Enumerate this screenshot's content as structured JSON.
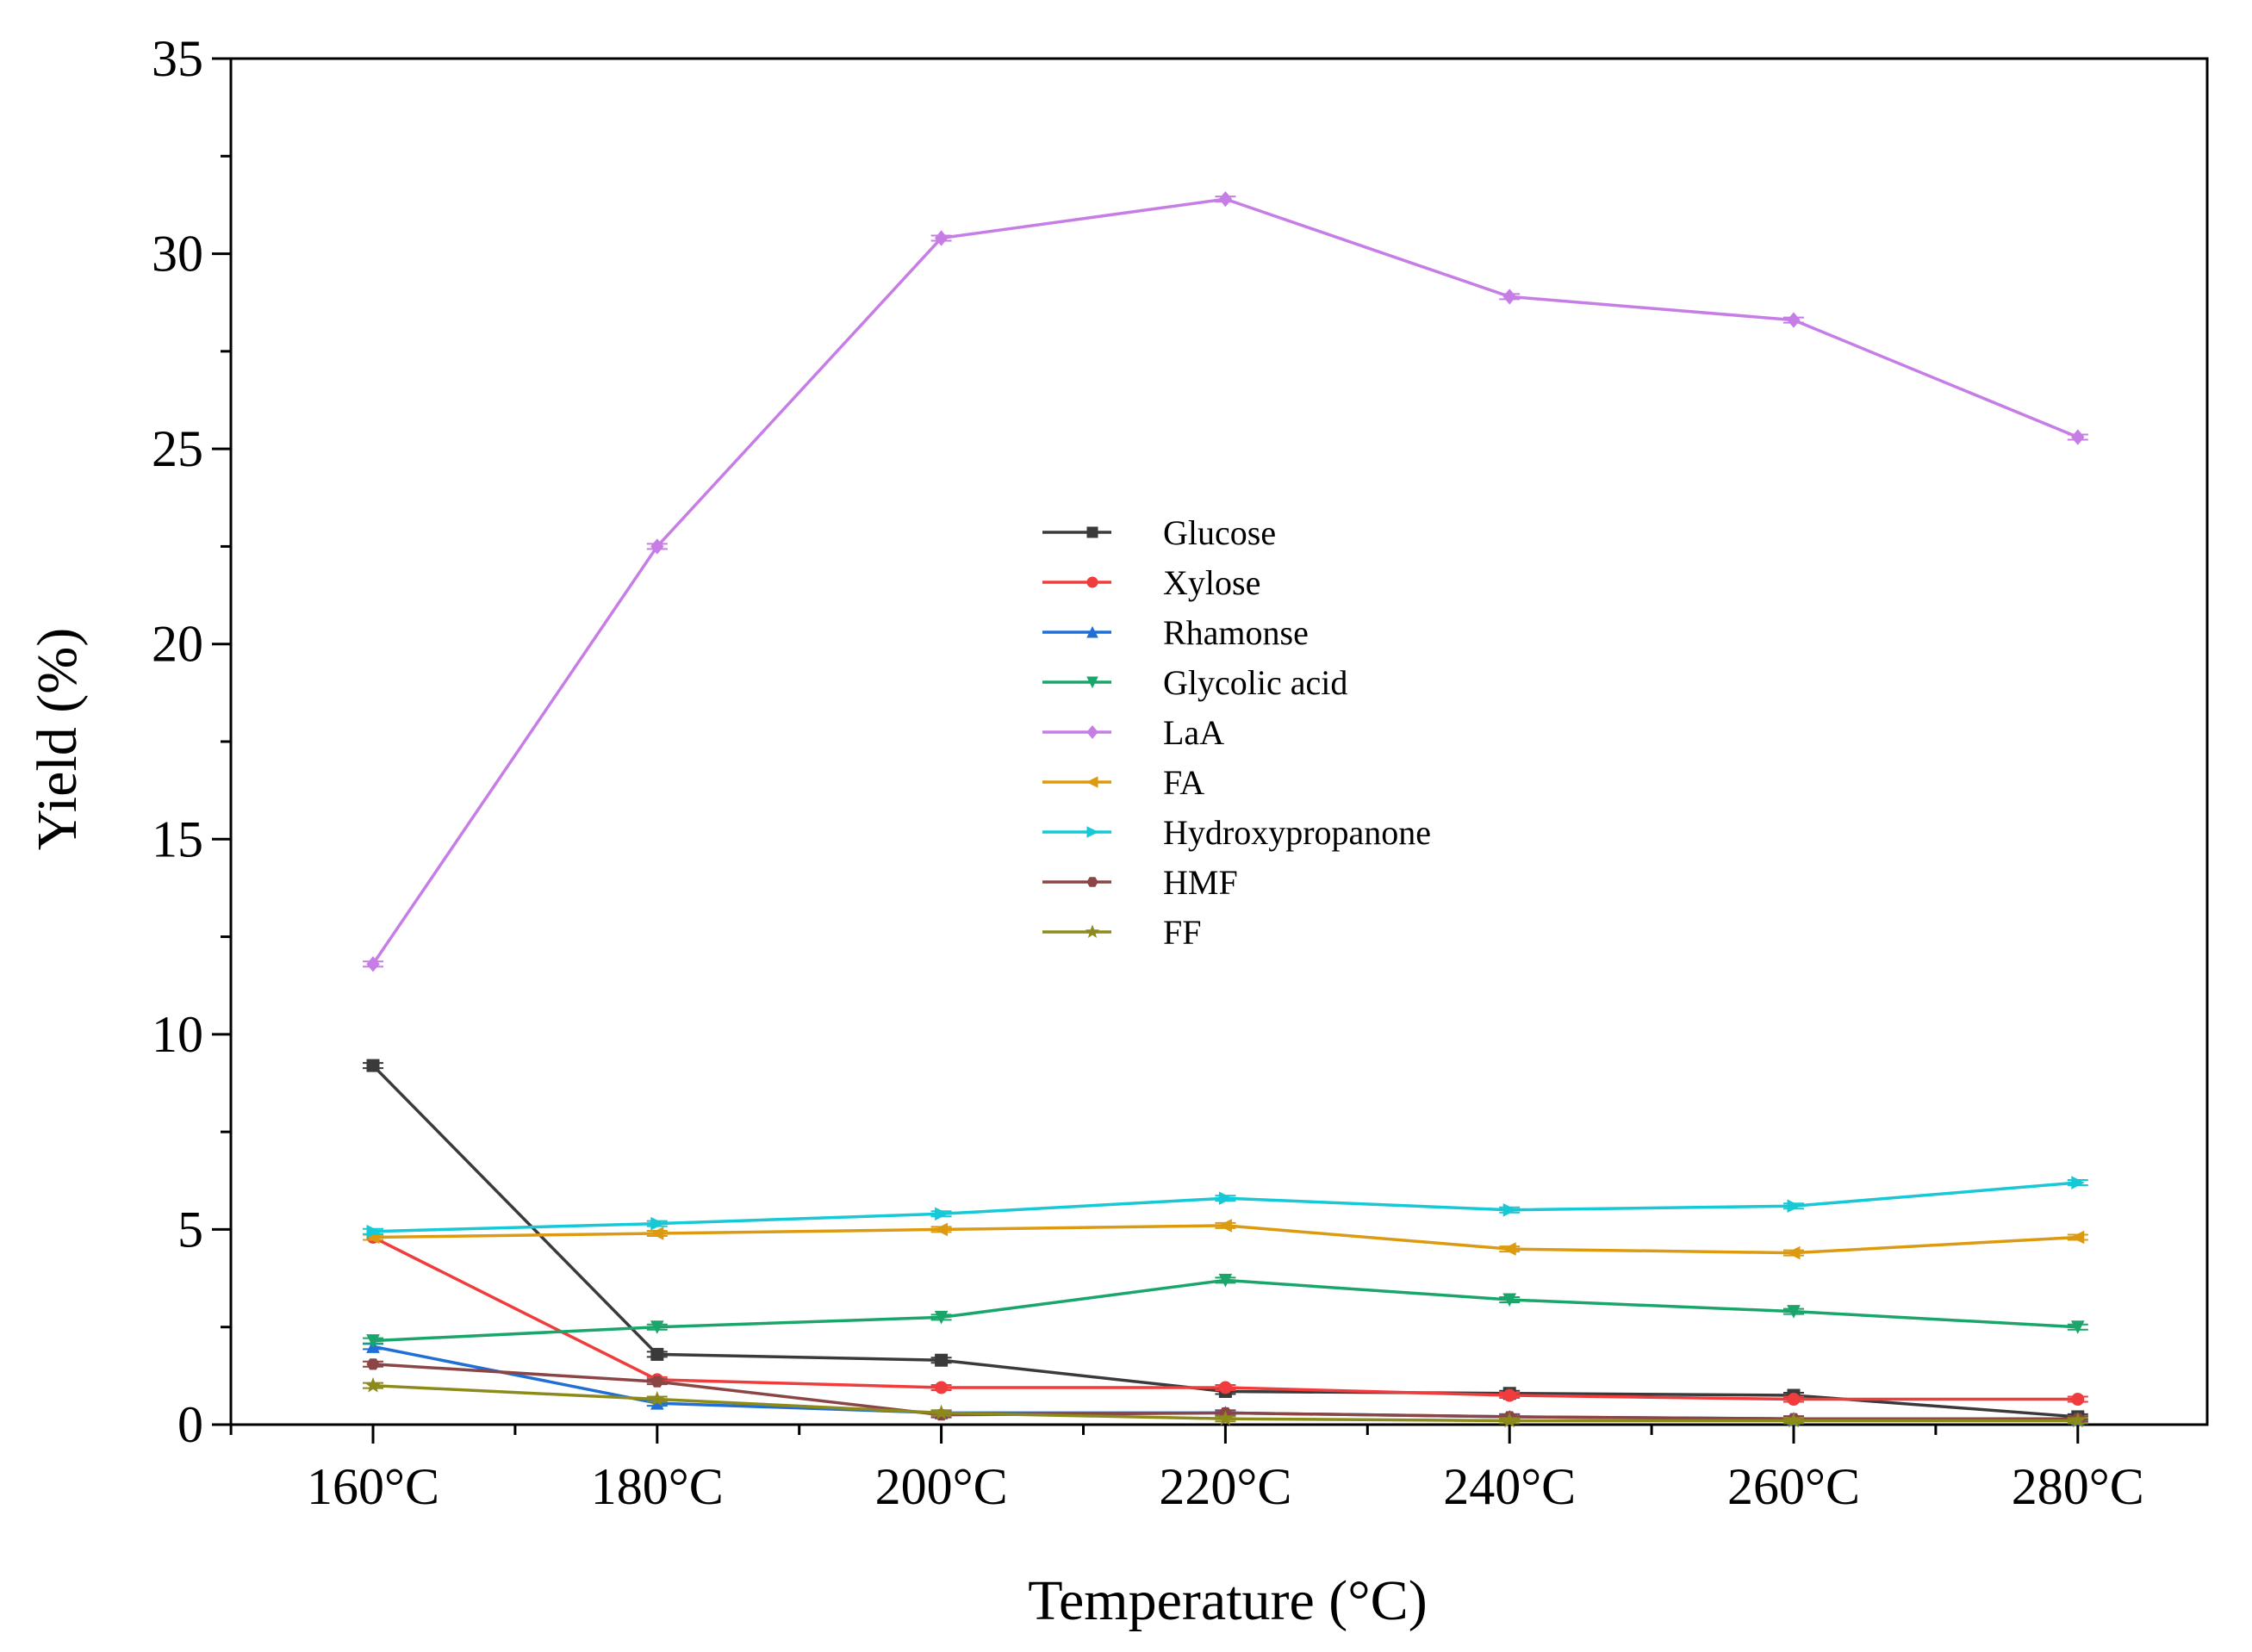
{
  "chart_data": {
    "type": "line",
    "title": "",
    "xlabel": "Temperature (°C)",
    "ylabel": "Yield (%)",
    "categories": [
      "160°C",
      "180°C",
      "200°C",
      "220°C",
      "240°C",
      "260°C",
      "280°C"
    ],
    "ylim": [
      0,
      35
    ],
    "yticks": [
      "0",
      "5",
      "10",
      "15",
      "20",
      "25",
      "30",
      "35"
    ],
    "grid": false,
    "legend_position": "center",
    "series": [
      {
        "name": "Glucose",
        "color": "#3a3a3a",
        "marker": "square",
        "values": [
          9.2,
          1.8,
          1.65,
          0.85,
          0.8,
          0.75,
          0.2
        ]
      },
      {
        "name": "Xylose",
        "color": "#f03c3c",
        "marker": "circle",
        "values": [
          4.8,
          1.15,
          0.95,
          0.95,
          0.75,
          0.65,
          0.65
        ]
      },
      {
        "name": "Rhamonse",
        "color": "#1f6fd6",
        "marker": "triangle-up",
        "values": [
          2.0,
          0.55,
          0.3,
          0.3,
          0.2,
          0.15,
          0.15
        ]
      },
      {
        "name": "Glycolic acid",
        "color": "#1aa66a",
        "marker": "triangle-down",
        "values": [
          2.15,
          2.5,
          2.75,
          3.7,
          3.2,
          2.9,
          2.5
        ]
      },
      {
        "name": "LaA",
        "color": "#c77de6",
        "marker": "diamond",
        "values": [
          11.8,
          22.5,
          30.4,
          31.4,
          28.9,
          28.3,
          25.3
        ]
      },
      {
        "name": "FA",
        "color": "#dc9a10",
        "marker": "triangle-left",
        "values": [
          4.8,
          4.9,
          5.0,
          5.1,
          4.5,
          4.4,
          4.8
        ]
      },
      {
        "name": "Hydroxypropanone",
        "color": "#17c8d6",
        "marker": "triangle-right",
        "values": [
          4.95,
          5.15,
          5.4,
          5.8,
          5.5,
          5.6,
          6.2
        ]
      },
      {
        "name": "HMF",
        "color": "#8b4545",
        "marker": "hexagon",
        "values": [
          1.55,
          1.1,
          0.25,
          0.3,
          0.2,
          0.15,
          0.15
        ]
      },
      {
        "name": "FF",
        "color": "#8c8a1a",
        "marker": "star",
        "values": [
          1.0,
          0.65,
          0.3,
          0.15,
          0.1,
          0.1,
          0.1
        ]
      }
    ]
  }
}
